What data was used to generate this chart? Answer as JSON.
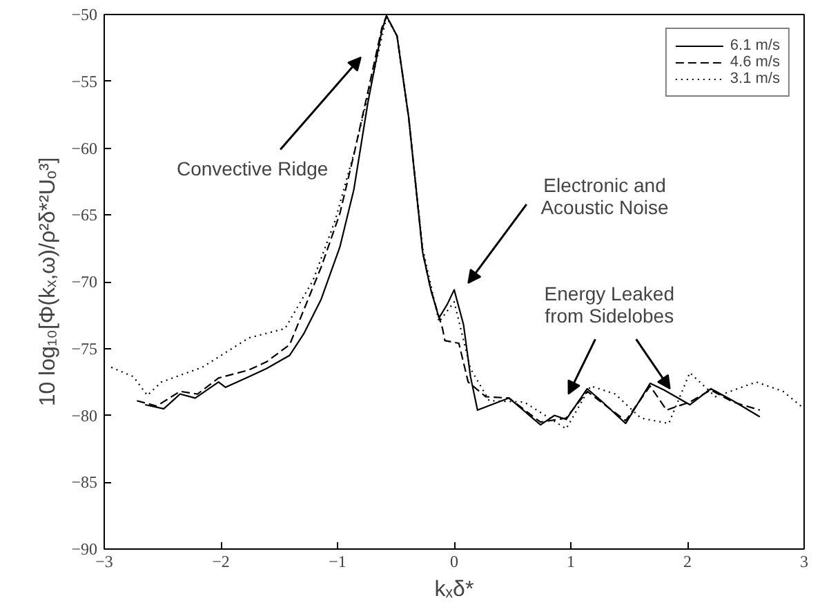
{
  "chart_data": {
    "type": "line",
    "xlabel": "kₓδ*",
    "ylabel": "10 log₁₀[Φ(kₓ,ω)/ρ²δ*²Uₒ³]",
    "xlim": [
      -3,
      3
    ],
    "ylim": [
      -90,
      -50
    ],
    "xticks": [
      -3,
      -2,
      -1,
      0,
      1,
      2,
      3
    ],
    "yticks": [
      -90,
      -85,
      -80,
      -75,
      -70,
      -65,
      -60,
      -55,
      -50
    ],
    "grid": false,
    "legend": "top right",
    "marker": "none",
    "series": [
      {
        "name": "6.1 m/s",
        "color": "#000000",
        "line_style": "solid",
        "x": [
          -2.65,
          -2.49,
          -2.35,
          -2.22,
          -2.02,
          -1.96,
          -1.76,
          -1.61,
          -1.41,
          -1.29,
          -1.14,
          -0.98,
          -0.86,
          -0.74,
          -0.62,
          -0.58,
          -0.49,
          -0.39,
          -0.27,
          -0.2,
          -0.13,
          -0.06,
          0.0,
          0.08,
          0.14,
          0.2,
          0.47,
          0.74,
          0.86,
          0.96,
          1.14,
          1.26,
          1.47,
          1.68,
          1.8,
          2.02,
          2.2,
          2.39,
          2.62
        ],
        "values": [
          -79.2,
          -79.5,
          -78.4,
          -78.7,
          -77.5,
          -77.9,
          -77.1,
          -76.5,
          -75.5,
          -73.9,
          -71.3,
          -67.4,
          -63.1,
          -56.6,
          -51.2,
          -50.1,
          -51.6,
          -57.7,
          -67.8,
          -70.6,
          -72.7,
          -71.7,
          -70.6,
          -73.2,
          -77.1,
          -79.6,
          -78.7,
          -80.7,
          -80,
          -80.3,
          -78,
          -78.9,
          -80.6,
          -77.6,
          -78.1,
          -79.2,
          -78,
          -78.9,
          -80.1
        ]
      },
      {
        "name": "4.6 m/s",
        "color": "#000000",
        "line_style": "dashed",
        "x": [
          -2.72,
          -2.55,
          -2.35,
          -2.2,
          -2.02,
          -1.76,
          -1.61,
          -1.41,
          -1.14,
          -0.98,
          -0.86,
          -0.74,
          -0.62,
          -0.58,
          -0.49,
          -0.39,
          -0.27,
          -0.2,
          -0.1,
          -0.08,
          0.04,
          0.12,
          0.27,
          0.47,
          0.74,
          0.96,
          1.14,
          1.26,
          1.47,
          1.68,
          1.82,
          2.02,
          2.2,
          2.39,
          2.62
        ],
        "values": [
          -78.9,
          -79.3,
          -78.2,
          -78.4,
          -77.2,
          -76.6,
          -76.0,
          -74.7,
          -68.9,
          -64.9,
          -60.5,
          -55.8,
          -51.0,
          -50.1,
          -51.6,
          -57.7,
          -67.8,
          -70.6,
          -73.5,
          -74.4,
          -74.6,
          -77.5,
          -78.6,
          -78.7,
          -80.5,
          -80.2,
          -78.2,
          -79.0,
          -80.4,
          -77.8,
          -79.6,
          -79.0,
          -78.1,
          -79.0,
          -79.6
        ]
      },
      {
        "name": "3.1 m/s",
        "color": "#000000",
        "line_style": "dotted",
        "x": [
          -2.94,
          -2.75,
          -2.63,
          -2.51,
          -2.16,
          -1.76,
          -1.45,
          -1.21,
          -1.02,
          -0.86,
          -0.71,
          -0.58,
          -0.49,
          -0.39,
          -0.27,
          -0.13,
          0.0,
          0.14,
          0.3,
          0.6,
          0.96,
          1.17,
          1.38,
          1.6,
          1.84,
          2.02,
          2.24,
          2.59,
          2.82,
          3.0
        ],
        "values": [
          -76.4,
          -77.1,
          -78.5,
          -77.5,
          -76.4,
          -74.2,
          -73.5,
          -69.9,
          -65.4,
          -60.4,
          -55.1,
          -50.2,
          -51.6,
          -57.7,
          -67.5,
          -73.0,
          -71.5,
          -76.5,
          -78.9,
          -79.0,
          -81.0,
          -77.8,
          -78.4,
          -80.2,
          -80.6,
          -76.8,
          -78.6,
          -77.5,
          -78.2,
          -79.5
        ]
      }
    ],
    "annotations": [
      "Convective Ridge",
      "Electronic and\nAcoustic Noise",
      {
        "text": "Energy Leaked\nfrom Sidelobes",
        "x": 1.85,
        "y": -78.0
      }
    ]
  }
}
